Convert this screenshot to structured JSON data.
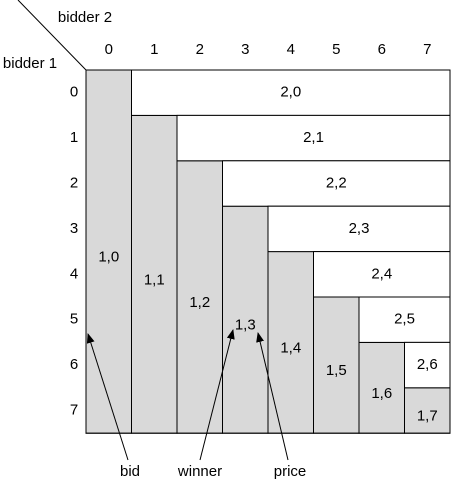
{
  "axes": {
    "bidder2": "bidder 2",
    "bidder1": "bidder 1"
  },
  "columns": [
    "0",
    "1",
    "2",
    "3",
    "4",
    "5",
    "6",
    "7"
  ],
  "rows": [
    "0",
    "1",
    "2",
    "3",
    "4",
    "5",
    "6",
    "7"
  ],
  "gray_labels": [
    "1,0",
    "1,1",
    "1,2",
    "1,3",
    "1,4",
    "1,5",
    "1,6",
    "1,7"
  ],
  "white_labels": [
    "2,0",
    "2,1",
    "2,2",
    "2,3",
    "2,4",
    "2,5",
    "2,6"
  ],
  "annotations": [
    "bid",
    "winner",
    "price"
  ]
}
